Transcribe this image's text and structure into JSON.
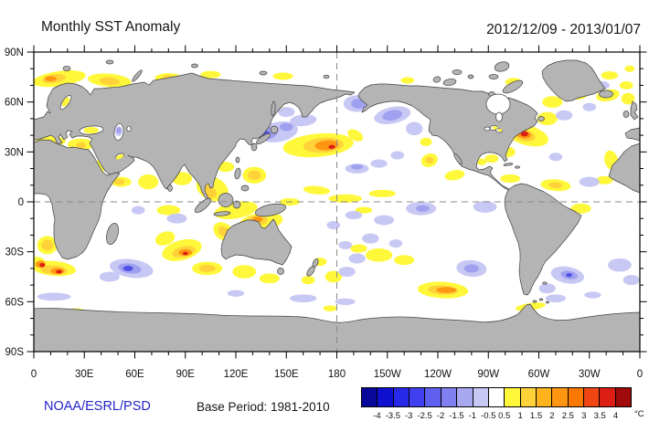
{
  "header": {
    "title": "Monthly SST Anomaly",
    "date_range": "2012/12/09 - 2013/01/07"
  },
  "footer": {
    "credit": "NOAA/ESRL/PSD",
    "base_period": "Base Period: 1981-2010"
  },
  "colorbar": {
    "unit": "°C",
    "colors": [
      "#08089b",
      "#1010d0",
      "#2828e8",
      "#4040f0",
      "#6060f0",
      "#8080f0",
      "#a8a8f0",
      "#c8c8f4",
      "#ffffff",
      "#fff83a",
      "#ffd23a",
      "#ffb41e",
      "#ff9612",
      "#fa7800",
      "#f04614",
      "#dc1e14",
      "#a00a0a"
    ],
    "boundary_labels": [
      "-4",
      "-3.5",
      "-3",
      "-2.5",
      "-2",
      "-1.5",
      "-1",
      "-0.5",
      "0.5",
      "1",
      "1.5",
      "2",
      "2.5",
      "3",
      "3.5",
      "4"
    ]
  },
  "axes": {
    "lat_ticks": [
      {
        "value": 90,
        "label": "90N"
      },
      {
        "value": 60,
        "label": "60N"
      },
      {
        "value": 30,
        "label": "30N"
      },
      {
        "value": 0,
        "label": "0"
      },
      {
        "value": -30,
        "label": "30S"
      },
      {
        "value": -60,
        "label": "60S"
      },
      {
        "value": -90,
        "label": "90S"
      }
    ],
    "lon_ticks": [
      {
        "value": 0,
        "label": "0"
      },
      {
        "value": 30,
        "label": "30E"
      },
      {
        "value": 60,
        "label": "60E"
      },
      {
        "value": 90,
        "label": "90E"
      },
      {
        "value": 120,
        "label": "120E"
      },
      {
        "value": 150,
        "label": "150E"
      },
      {
        "value": 180,
        "label": "180"
      },
      {
        "value": 210,
        "label": "150W"
      },
      {
        "value": 240,
        "label": "120W"
      },
      {
        "value": 270,
        "label": "90W"
      },
      {
        "value": 300,
        "label": "60W"
      },
      {
        "value": 330,
        "label": "30W"
      },
      {
        "value": 360,
        "label": "0"
      }
    ],
    "minor_step_deg": 10
  },
  "chart_data": {
    "type": "heatmap",
    "title": "Monthly SST Anomaly",
    "period": "2012/12/09 - 2013/01/07",
    "base_period": "1981-2010",
    "units": "°C",
    "lon_range": [
      0,
      360
    ],
    "lat_range": [
      -90,
      90
    ],
    "projection": "equirectangular, Pacific-centered",
    "gridlines": {
      "equator_dashed": true,
      "dateline_dashed": true
    },
    "levels": [
      -4,
      -3.5,
      -3,
      -2.5,
      -2,
      -1.5,
      -1,
      -0.5,
      0.5,
      1,
      1.5,
      2,
      2.5,
      3,
      3.5,
      4
    ],
    "level_colors": {
      "w1": "#fff83a",
      "w2": "#ffd23a",
      "w3": "#ff9612",
      "w4": "#dc1e14",
      "c1": "#c8c8f4",
      "c2": "#a0a0f0",
      "c3": "#5050e8"
    },
    "level_meaning": {
      "w1": "+0.5 to +1",
      "w2": "+1 to +1.5",
      "w3": "+1.5 to +2.5",
      "w4": "> +3",
      "c1": "-0.5 to -1",
      "c2": "-1 to -1.5",
      "c3": "-1.5 to -2.5"
    },
    "anomaly_regions": [
      [
        15,
        74,
        16,
        4.5,
        -8,
        "w1"
      ],
      [
        45,
        73,
        13,
        4,
        5,
        "w1"
      ],
      [
        80,
        74.5,
        8,
        2.8,
        0,
        "w1"
      ],
      [
        105,
        76.5,
        6,
        2.2,
        0,
        "w1"
      ],
      [
        148,
        75.5,
        6,
        2.2,
        0,
        "w1"
      ],
      [
        354,
        80,
        3,
        2,
        0,
        "w1"
      ],
      [
        353,
        62,
        4,
        3.5,
        0,
        "w1"
      ],
      [
        10,
        36.5,
        9,
        3,
        0,
        "w1"
      ],
      [
        28,
        34.5,
        8,
        3.5,
        0,
        "w1"
      ],
      [
        38,
        19,
        3.5,
        8,
        25,
        "w1"
      ],
      [
        52,
        12,
        6,
        3,
        0,
        "w1"
      ],
      [
        68,
        12,
        6,
        4.5,
        0,
        "w1"
      ],
      [
        88,
        14,
        6,
        4,
        0,
        "w1"
      ],
      [
        106,
        8,
        10,
        7,
        25,
        "w1"
      ],
      [
        114,
        21,
        5,
        3,
        0,
        "w1"
      ],
      [
        131,
        16,
        7,
        5,
        0,
        "w1"
      ],
      [
        120,
        -5,
        13,
        5,
        -10,
        "w1"
      ],
      [
        135,
        -12,
        13,
        5.5,
        -8,
        "w1"
      ],
      [
        113,
        -18,
        7,
        5,
        35,
        "w1"
      ],
      [
        80,
        -5,
        7,
        3,
        0,
        "w1"
      ],
      [
        146,
        57,
        2,
        1.5,
        0,
        "w1"
      ],
      [
        169,
        34,
        21,
        7,
        -5,
        "w1"
      ],
      [
        191,
        40,
        5,
        3,
        30,
        "w1"
      ],
      [
        168,
        7,
        8,
        2.5,
        5,
        "w1"
      ],
      [
        185,
        2,
        10,
        2.5,
        0,
        "w1"
      ],
      [
        207,
        5,
        8,
        2.2,
        0,
        "w1"
      ],
      [
        152,
        0,
        6,
        2.2,
        0,
        "w1"
      ],
      [
        196,
        -5,
        5,
        2,
        0,
        "w1"
      ],
      [
        235,
        25,
        5,
        4,
        -20,
        "w1"
      ],
      [
        250,
        16,
        6,
        3,
        -10,
        "w1"
      ],
      [
        233,
        36,
        3.5,
        2.5,
        0,
        "w1"
      ],
      [
        293,
        40,
        13,
        6,
        15,
        "w1"
      ],
      [
        305,
        50,
        6,
        4,
        0,
        "w1"
      ],
      [
        282,
        30,
        4,
        3,
        0,
        "w1"
      ],
      [
        272,
        26,
        4,
        2.5,
        0,
        "w1"
      ],
      [
        266,
        24,
        3,
        2,
        0,
        "w1"
      ],
      [
        308,
        60,
        6,
        3.5,
        0,
        "w1"
      ],
      [
        323,
        65,
        6,
        3.5,
        0,
        "w1"
      ],
      [
        341,
        64,
        7,
        3.5,
        -10,
        "w1"
      ],
      [
        342,
        76,
        5,
        2.5,
        0,
        "w1"
      ],
      [
        352,
        70,
        4,
        2.5,
        0,
        "w1"
      ],
      [
        285,
        72,
        5,
        2.5,
        0,
        "w1"
      ],
      [
        222,
        73,
        4,
        2,
        0,
        "w1"
      ],
      [
        176,
        64,
        1.5,
        1.2,
        0,
        "w1"
      ],
      [
        343,
        25,
        4,
        6,
        -15,
        "w1"
      ],
      [
        339,
        13,
        5,
        2.5,
        0,
        "w1"
      ],
      [
        310,
        10,
        9,
        3.5,
        5,
        "w1"
      ],
      [
        325,
        -4,
        6,
        3,
        0,
        "w1"
      ],
      [
        283,
        14,
        6,
        2.5,
        0,
        "w1"
      ],
      [
        8,
        -26,
        6,
        5.5,
        0,
        "w1"
      ],
      [
        12,
        -40,
        13,
        4.5,
        5,
        "w1"
      ],
      [
        2,
        -37,
        5,
        4,
        0,
        "w1"
      ],
      [
        88,
        -29,
        12,
        6,
        -15,
        "w1"
      ],
      [
        78,
        -22,
        6,
        4,
        -20,
        "w1"
      ],
      [
        103,
        -40,
        9,
        4,
        0,
        "w1"
      ],
      [
        125,
        -42,
        7,
        4,
        0,
        "w1"
      ],
      [
        140,
        -46,
        6,
        3,
        0,
        "w1"
      ],
      [
        170,
        -36,
        4,
        2.5,
        0,
        "w1"
      ],
      [
        178,
        -45,
        5,
        3.5,
        0,
        "w1"
      ],
      [
        163,
        -47,
        4,
        2.5,
        0,
        "w1"
      ],
      [
        205,
        -32,
        8,
        4,
        0,
        "w1"
      ],
      [
        220,
        -35,
        6,
        3,
        0,
        "w1"
      ],
      [
        193,
        -28,
        5,
        2.5,
        0,
        "w1"
      ],
      [
        243,
        -53,
        15,
        5,
        3,
        "w1"
      ],
      [
        295,
        -63,
        9,
        2.2,
        -8,
        "w1"
      ],
      [
        25,
        -65.5,
        5,
        1.6,
        0,
        "w1"
      ],
      [
        176,
        -64,
        4,
        1.8,
        0,
        "w1"
      ],
      [
        12,
        74,
        7,
        2.6,
        -8,
        "w2"
      ],
      [
        45,
        72.5,
        6,
        2.4,
        5,
        "w2"
      ],
      [
        80,
        74.5,
        4,
        1.6,
        0,
        "w2"
      ],
      [
        172,
        34,
        12,
        4.5,
        -4,
        "w2"
      ],
      [
        291,
        40,
        7,
        3.5,
        12,
        "w2"
      ],
      [
        89,
        -30,
        7,
        3.2,
        -12,
        "w2"
      ],
      [
        12,
        -41,
        8,
        2.8,
        5,
        "w2"
      ],
      [
        8,
        -26,
        3.5,
        3.2,
        0,
        "w2"
      ],
      [
        243,
        -53,
        9,
        2.8,
        3,
        "w2"
      ],
      [
        133,
        -11,
        6,
        3,
        0,
        "w2"
      ],
      [
        113,
        -18,
        4,
        2.8,
        35,
        "w2"
      ],
      [
        104,
        6,
        5,
        3.5,
        25,
        "w2"
      ],
      [
        131,
        16,
        4,
        2.8,
        0,
        "w2"
      ],
      [
        37,
        17,
        1.8,
        4,
        25,
        "w2"
      ],
      [
        51,
        12,
        3,
        1.8,
        0,
        "w2"
      ],
      [
        103,
        -40,
        5,
        2.2,
        0,
        "w2"
      ],
      [
        28,
        34,
        3,
        1.8,
        0,
        "w2"
      ],
      [
        310,
        10,
        4,
        1.8,
        5,
        "w2"
      ],
      [
        235,
        25,
        2.5,
        2,
        0,
        "w2"
      ],
      [
        174,
        34,
        7,
        3,
        -4,
        "w3"
      ],
      [
        291,
        40.5,
        4.5,
        2.4,
        10,
        "w3"
      ],
      [
        90,
        -30.5,
        4,
        2,
        0,
        "w3"
      ],
      [
        14,
        -41.5,
        4,
        1.8,
        0,
        "w3"
      ],
      [
        4,
        -37.5,
        3,
        2.2,
        0,
        "w3"
      ],
      [
        245,
        -53,
        6,
        1.8,
        0,
        "w3"
      ],
      [
        10,
        74,
        3.5,
        1.6,
        0,
        "w3"
      ],
      [
        133,
        -10.5,
        3,
        1.6,
        0,
        "w3"
      ],
      [
        291.5,
        40.8,
        2.2,
        1.5,
        0,
        "w4"
      ],
      [
        90,
        -31,
        1.6,
        1,
        0,
        "w4"
      ],
      [
        5,
        -38,
        1.6,
        1.2,
        0,
        "w4"
      ],
      [
        15,
        -42,
        1.8,
        1.1,
        0,
        "w4"
      ],
      [
        177,
        33,
        2,
        1.2,
        0,
        "w4"
      ],
      [
        145,
        42,
        12,
        6,
        -10,
        "c1"
      ],
      [
        160,
        49,
        8,
        3.5,
        -5,
        "c1"
      ],
      [
        150,
        54,
        5,
        3,
        0,
        "c1"
      ],
      [
        192,
        59,
        8,
        5,
        0,
        "c1"
      ],
      [
        213,
        52,
        11,
        5,
        -12,
        "c1"
      ],
      [
        226,
        44,
        5,
        4,
        0,
        "c1"
      ],
      [
        192,
        20,
        7,
        3,
        0,
        "c1"
      ],
      [
        205,
        23,
        5,
        2.5,
        0,
        "c1"
      ],
      [
        216,
        28,
        4,
        2.5,
        0,
        "c1"
      ],
      [
        230,
        -4,
        9,
        4,
        0,
        "c1"
      ],
      [
        268,
        -3,
        7,
        3.5,
        0,
        "c1"
      ],
      [
        208,
        -11,
        6,
        3,
        0,
        "c1"
      ],
      [
        190,
        -8,
        5,
        2.5,
        0,
        "c1"
      ],
      [
        178,
        -14,
        4,
        2.5,
        0,
        "c1"
      ],
      [
        200,
        -22,
        5,
        3,
        0,
        "c1"
      ],
      [
        215,
        -25,
        4,
        2.5,
        0,
        "c1"
      ],
      [
        185,
        -26,
        4,
        2.5,
        0,
        "c1"
      ],
      [
        192,
        -34,
        5,
        3,
        0,
        "c1"
      ],
      [
        186,
        -42,
        5,
        3,
        0,
        "c1"
      ],
      [
        260,
        -40,
        9,
        5,
        5,
        "c1"
      ],
      [
        305,
        -52,
        5,
        3,
        0,
        "c1"
      ],
      [
        317,
        -44,
        10,
        5,
        10,
        "c1"
      ],
      [
        348,
        -38,
        7,
        4,
        0,
        "c1"
      ],
      [
        355,
        -47,
        5,
        3,
        0,
        "c1"
      ],
      [
        58,
        -40,
        13,
        5.5,
        8,
        "c1"
      ],
      [
        45,
        -45,
        6,
        3,
        0,
        "c1"
      ],
      [
        85,
        -10,
        6,
        3,
        0,
        "c1"
      ],
      [
        62,
        -5,
        4,
        2.5,
        0,
        "c1"
      ],
      [
        12,
        -57,
        10,
        2.4,
        0,
        "c1"
      ],
      [
        160,
        -58,
        8,
        2.4,
        0,
        "c1"
      ],
      [
        185,
        -60,
        6,
        2,
        0,
        "c1"
      ],
      [
        310,
        -58,
        6,
        2.4,
        0,
        "c1"
      ],
      [
        332,
        -56,
        5,
        2,
        0,
        "c1"
      ],
      [
        120,
        -55,
        5,
        2,
        0,
        "c1"
      ],
      [
        315,
        52,
        5,
        3,
        0,
        "c1"
      ],
      [
        330,
        57,
        4,
        2.5,
        0,
        "c1"
      ],
      [
        338,
        70,
        4,
        2.5,
        0,
        "c1"
      ],
      [
        330,
        12,
        6,
        3,
        0,
        "c1"
      ],
      [
        310,
        27,
        4,
        2.5,
        0,
        "c1"
      ],
      [
        139,
        41,
        6,
        3.5,
        -15,
        "c2"
      ],
      [
        150,
        45,
        4,
        2.5,
        0,
        "c2"
      ],
      [
        193,
        59,
        4.5,
        3,
        0,
        "c2"
      ],
      [
        213,
        52,
        6,
        3,
        -12,
        "c2"
      ],
      [
        57,
        -40,
        7,
        3,
        8,
        "c2"
      ],
      [
        318,
        -44,
        5,
        2.5,
        10,
        "c2"
      ],
      [
        260,
        -40,
        4.5,
        2.5,
        0,
        "c2"
      ],
      [
        231,
        -4,
        4,
        2,
        0,
        "c2"
      ],
      [
        192,
        21,
        3.5,
        1.6,
        0,
        "c2"
      ],
      [
        56,
        -40,
        3,
        1.6,
        0,
        "c3"
      ],
      [
        318,
        -44,
        1.8,
        1.2,
        0,
        "c3"
      ],
      [
        138,
        41,
        2.2,
        1.4,
        -15,
        "c3"
      ],
      [
        50.5,
        42.5,
        2.2,
        3,
        5,
        "c1",
        "over"
      ],
      [
        50.5,
        43,
        1.4,
        1.8,
        0,
        "c2",
        "over"
      ],
      [
        19,
        60,
        1.6,
        3.2,
        35,
        "w1",
        "over"
      ],
      [
        34,
        43,
        4.5,
        2,
        0,
        "w1",
        "over"
      ],
      [
        51,
        27,
        2.5,
        1.2,
        -25,
        "w1",
        "over"
      ],
      [
        274,
        44.5,
        1.5,
        1,
        0,
        "w1",
        "over"
      ],
      [
        277,
        43,
        1.2,
        0.8,
        0,
        "w1",
        "over"
      ]
    ]
  }
}
